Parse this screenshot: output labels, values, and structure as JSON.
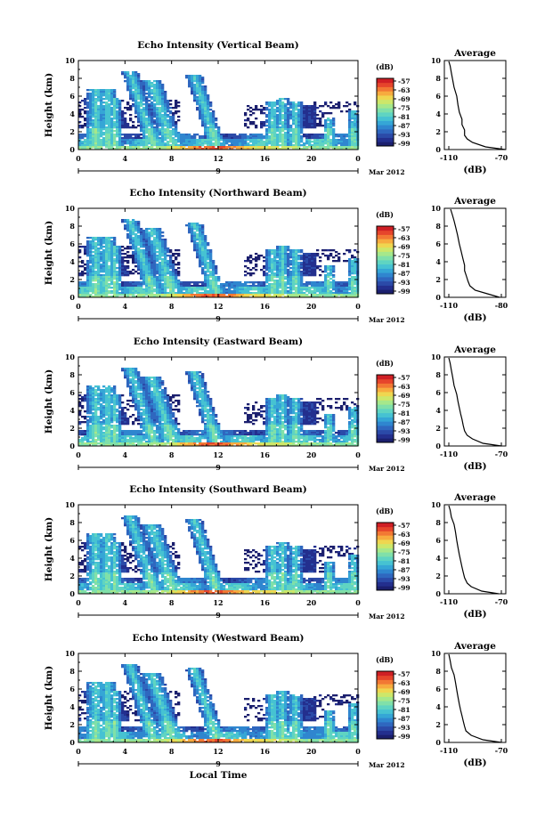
{
  "chart_data": {
    "type": "heatmap",
    "colors": {
      "scale": [
        "#1b1f6e",
        "#232f8e",
        "#2b4aa8",
        "#2f67bf",
        "#2f86cf",
        "#35a6d6",
        "#46c2d2",
        "#5fd4c2",
        "#80e0a9",
        "#a6e88b",
        "#cde76a",
        "#efd650",
        "#f7ab3f",
        "#f27834",
        "#e6452c",
        "#cf1f25"
      ]
    },
    "shared": {
      "height_label": "Height (km)",
      "y_ticks": [
        "0",
        "2",
        "4",
        "6",
        "8",
        "10"
      ],
      "ylim": [
        0,
        10
      ],
      "x_ticks": [
        "0",
        "4",
        "8",
        "12",
        "16",
        "20",
        "0"
      ],
      "xlim": [
        0,
        24
      ],
      "day_label": "9",
      "month_label": "Mar 2012",
      "cbar_unit": "(dB)",
      "cbar_ticks": [
        "-57",
        "-63",
        "-69",
        "-75",
        "-81",
        "-87",
        "-93",
        "-99"
      ],
      "avg_title": "Average",
      "avg_xlabel": "(dB)",
      "xlabel_bottom": "Local Time"
    },
    "panels": [
      {
        "title": "Echo Intensity (Vertical Beam)",
        "avg_xticks": [
          "-110",
          "-70"
        ],
        "avg_xlim": [
          -110,
          -70
        ],
        "avg_profile": [
          [
            -67,
            0
          ],
          [
            -82,
            0.3
          ],
          [
            -92,
            0.8
          ],
          [
            -96,
            1.2
          ],
          [
            -98,
            1.6
          ],
          [
            -98,
            2.2
          ],
          [
            -100,
            2.8
          ],
          [
            -100,
            3.4
          ],
          [
            -102,
            4.2
          ],
          [
            -103,
            5.0
          ],
          [
            -104,
            6.0
          ],
          [
            -106,
            7.0
          ],
          [
            -107,
            7.8
          ],
          [
            -108,
            8.6
          ],
          [
            -109,
            9.4
          ],
          [
            -110,
            9.9
          ]
        ]
      },
      {
        "title": "Echo Intensity (Northward Beam)",
        "avg_xticks": [
          "-110",
          "-80"
        ],
        "avg_xlim": [
          -110,
          -80
        ],
        "avg_profile": [
          [
            -81,
            0
          ],
          [
            -88,
            0.4
          ],
          [
            -95,
            0.8
          ],
          [
            -98,
            1.3
          ],
          [
            -99,
            1.8
          ],
          [
            -100,
            2.4
          ],
          [
            -101,
            3.0
          ],
          [
            -101,
            3.6
          ],
          [
            -102,
            4.4
          ],
          [
            -103,
            5.2
          ],
          [
            -104,
            6.0
          ],
          [
            -105,
            7.0
          ],
          [
            -106,
            7.8
          ],
          [
            -107,
            8.6
          ],
          [
            -108,
            9.3
          ],
          [
            -109,
            9.9
          ]
        ]
      },
      {
        "title": "Echo Intensity (Eastward Beam)",
        "avg_xticks": [
          "-110",
          "-70"
        ],
        "avg_xlim": [
          -110,
          -70
        ],
        "avg_profile": [
          [
            -70,
            0
          ],
          [
            -84,
            0.3
          ],
          [
            -92,
            0.8
          ],
          [
            -96,
            1.2
          ],
          [
            -98,
            1.7
          ],
          [
            -99,
            2.3
          ],
          [
            -100,
            3.0
          ],
          [
            -101,
            3.6
          ],
          [
            -102,
            4.3
          ],
          [
            -103,
            5.0
          ],
          [
            -104,
            5.8
          ],
          [
            -106,
            6.8
          ],
          [
            -107,
            7.7
          ],
          [
            -108,
            8.5
          ],
          [
            -109,
            9.3
          ],
          [
            -110,
            9.9
          ]
        ]
      },
      {
        "title": "Echo Intensity (Southward Beam)",
        "avg_xticks": [
          "-110",
          "-70"
        ],
        "avg_xlim": [
          -110,
          -70
        ],
        "avg_profile": [
          [
            -72,
            0
          ],
          [
            -85,
            0.3
          ],
          [
            -93,
            0.8
          ],
          [
            -96,
            1.2
          ],
          [
            -98,
            1.8
          ],
          [
            -99,
            2.4
          ],
          [
            -100,
            3.0
          ],
          [
            -101,
            3.7
          ],
          [
            -102,
            4.4
          ],
          [
            -103,
            5.2
          ],
          [
            -104,
            6.0
          ],
          [
            -105,
            7.0
          ],
          [
            -106,
            7.8
          ],
          [
            -108,
            8.6
          ],
          [
            -109,
            9.4
          ],
          [
            -110,
            9.9
          ]
        ]
      },
      {
        "title": "Echo Intensity (Westward Beam)",
        "avg_xticks": [
          "-110",
          "-70"
        ],
        "avg_xlim": [
          -110,
          -70
        ],
        "avg_profile": [
          [
            -70,
            0
          ],
          [
            -84,
            0.3
          ],
          [
            -93,
            0.8
          ],
          [
            -97,
            1.3
          ],
          [
            -98,
            1.8
          ],
          [
            -99,
            2.4
          ],
          [
            -100,
            3.0
          ],
          [
            -101,
            3.6
          ],
          [
            -102,
            4.3
          ],
          [
            -103,
            5.1
          ],
          [
            -104,
            5.9
          ],
          [
            -105,
            6.8
          ],
          [
            -106,
            7.6
          ],
          [
            -108,
            8.4
          ],
          [
            -109,
            9.2
          ],
          [
            -110,
            9.9
          ]
        ]
      }
    ]
  }
}
